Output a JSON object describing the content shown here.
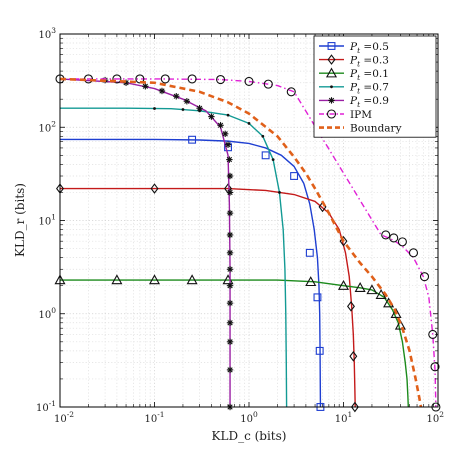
{
  "chart_data": {
    "type": "line",
    "xlabel": "KLD_c (bits)",
    "ylabel": "KLD_r (bits)",
    "x_scale": "log",
    "y_scale": "log",
    "xlim": [
      0.01,
      100
    ],
    "ylim": [
      0.1,
      1000
    ],
    "grid": true,
    "legend_position": "top-right",
    "x_ticks": [
      {
        "value": 0.01,
        "base": "10",
        "exp": "-2"
      },
      {
        "value": 0.1,
        "base": "10",
        "exp": "-1"
      },
      {
        "value": 1,
        "base": "10",
        "exp": "0"
      },
      {
        "value": 10,
        "base": "10",
        "exp": "1"
      },
      {
        "value": 100,
        "base": "10",
        "exp": "2"
      }
    ],
    "y_ticks": [
      {
        "value": 0.1,
        "base": "10",
        "exp": "-1"
      },
      {
        "value": 1,
        "base": "10",
        "exp": "0"
      },
      {
        "value": 10,
        "base": "10",
        "exp": "1"
      },
      {
        "value": 100,
        "base": "10",
        "exp": "2"
      },
      {
        "value": 1000,
        "base": "10",
        "exp": "3"
      }
    ],
    "series": [
      {
        "name": "P_t =0.5",
        "color": "#1f3fd1",
        "marker": "square",
        "dash": "solid",
        "x": [
          0.01,
          0.1,
          0.3,
          0.6,
          1.0,
          1.5,
          2.2,
          3.0,
          3.8,
          4.4,
          4.9,
          5.3,
          5.5,
          5.6,
          5.65,
          5.7
        ],
        "y": [
          74,
          74,
          73,
          71,
          67,
          60,
          50,
          38,
          25,
          15,
          8,
          4,
          2,
          1,
          0.4,
          0.1
        ],
        "markers_x": [
          0.25,
          0.6,
          1.5,
          3.0,
          4.4,
          5.3,
          5.6,
          5.7
        ],
        "markers_y": [
          73.5,
          61,
          50,
          30,
          4.5,
          1.5,
          0.4,
          0.1
        ]
      },
      {
        "name": "P_t =0.3",
        "color": "#c41a1a",
        "marker": "diamond",
        "dash": "solid",
        "x": [
          0.01,
          0.2,
          0.6,
          1.5,
          3.0,
          5.0,
          7.0,
          9.0,
          10.5,
          11.5,
          12.2,
          12.7,
          13.0,
          13.2,
          13.3
        ],
        "y": [
          22,
          22,
          22,
          21,
          19,
          16,
          12,
          8,
          4.5,
          2.5,
          1.2,
          0.6,
          0.3,
          0.15,
          0.1
        ],
        "markers_x": [
          0.01,
          0.1,
          0.6,
          6.0,
          10.0,
          12.0,
          12.7,
          13.2
        ],
        "markers_y": [
          22,
          22,
          22,
          14,
          6,
          1.2,
          0.35,
          0.1
        ]
      },
      {
        "name": "P_t =0.1",
        "color": "#1b8a1b",
        "marker": "triangle",
        "dash": "solid",
        "x": [
          0.01,
          0.3,
          2.0,
          5.0,
          10.0,
          15.0,
          20.0,
          27.0,
          33.0,
          38.0,
          42.0,
          45.0,
          47.0,
          48.0,
          48.5
        ],
        "y": [
          2.3,
          2.3,
          2.3,
          2.2,
          2.0,
          1.9,
          1.8,
          1.5,
          1.1,
          0.8,
          0.5,
          0.3,
          0.2,
          0.13,
          0.1
        ],
        "markers_x": [
          0.01,
          0.04,
          0.1,
          0.25,
          0.6,
          4.5,
          10.0,
          15.0,
          20.0,
          25.0,
          30.0,
          36.0,
          40.0
        ],
        "markers_y": [
          2.3,
          2.3,
          2.3,
          2.3,
          2.3,
          2.2,
          2.0,
          1.9,
          1.8,
          1.6,
          1.3,
          1.0,
          0.75
        ]
      },
      {
        "name": "P_t =0.7",
        "color": "#139a94",
        "marker": "dot",
        "dash": "solid",
        "x": [
          0.01,
          0.05,
          0.15,
          0.3,
          0.6,
          1.0,
          1.4,
          1.8,
          2.1,
          2.3,
          2.4,
          2.45,
          2.48,
          2.5
        ],
        "y": [
          160,
          160,
          158,
          150,
          135,
          110,
          80,
          45,
          20,
          8,
          3,
          1,
          0.3,
          0.1
        ],
        "markers_x": [
          0.1,
          0.2,
          0.3,
          0.6,
          1.0,
          1.4,
          1.8,
          2.1
        ],
        "markers_y": [
          159,
          155,
          150,
          135,
          110,
          80,
          45,
          20
        ]
      },
      {
        "name": "P_t =0.9",
        "color": "#9a1fa3",
        "marker": "star",
        "dash": "solid",
        "x": [
          0.01,
          0.05,
          0.1,
          0.2,
          0.35,
          0.5,
          0.6,
          0.62,
          0.63,
          0.63,
          0.63,
          0.63
        ],
        "y": [
          330,
          300,
          260,
          200,
          150,
          100,
          50,
          15,
          3,
          1,
          0.3,
          0.1
        ],
        "markers_x": [
          0.03,
          0.05,
          0.08,
          0.12,
          0.17,
          0.22,
          0.3,
          0.4,
          0.5,
          0.56,
          0.6,
          0.62,
          0.63,
          0.63,
          0.63,
          0.63,
          0.63,
          0.63,
          0.63,
          0.63,
          0.63,
          0.63,
          0.63,
          0.63
        ],
        "markers_y": [
          320,
          300,
          275,
          245,
          215,
          190,
          160,
          130,
          105,
          85,
          65,
          45,
          30,
          20,
          12,
          7,
          4.5,
          3,
          2,
          1.3,
          0.8,
          0.5,
          0.25,
          0.1
        ]
      },
      {
        "name": "IPM",
        "color": "#e021d6",
        "marker": "circle",
        "dash": "dashdot",
        "x": [
          0.01,
          0.1,
          0.5,
          1.0,
          2.0,
          3.0,
          25.0,
          30.0,
          35.0,
          42.0,
          55.0,
          70.0,
          80.0,
          88.0,
          93.0,
          95.0
        ],
        "y": [
          330,
          330,
          325,
          310,
          280,
          240,
          7.0,
          6.5,
          6.0,
          5.3,
          4.0,
          2.5,
          1.5,
          0.6,
          0.25,
          0.1
        ],
        "markers_x": [
          0.01,
          0.02,
          0.04,
          0.07,
          0.13,
          0.25,
          0.5,
          1.0,
          1.6,
          2.8,
          28.0,
          34.0,
          42.0,
          55.0,
          72.0,
          88.0,
          93.0,
          95.0
        ],
        "markers_y": [
          330,
          330,
          330,
          330,
          330,
          330,
          325,
          310,
          290,
          240,
          7.0,
          6.5,
          5.9,
          4.5,
          2.5,
          0.6,
          0.27,
          0.1
        ]
      },
      {
        "name": "Boundary",
        "color": "#e0601a",
        "marker": "none",
        "dash": "dashed",
        "x": [
          0.01,
          0.1,
          0.3,
          0.6,
          1.0,
          2.0,
          3.0,
          4.0,
          5.0,
          7.0,
          10.0,
          15.0,
          20.0,
          28.0,
          35.0,
          42.0,
          50.0,
          58.0,
          63.0,
          66.0
        ],
        "y": [
          330,
          300,
          240,
          185,
          140,
          80,
          48,
          32,
          22,
          12,
          6,
          3.5,
          2.5,
          1.6,
          1.1,
          0.7,
          0.4,
          0.2,
          0.13,
          0.1
        ]
      }
    ]
  }
}
